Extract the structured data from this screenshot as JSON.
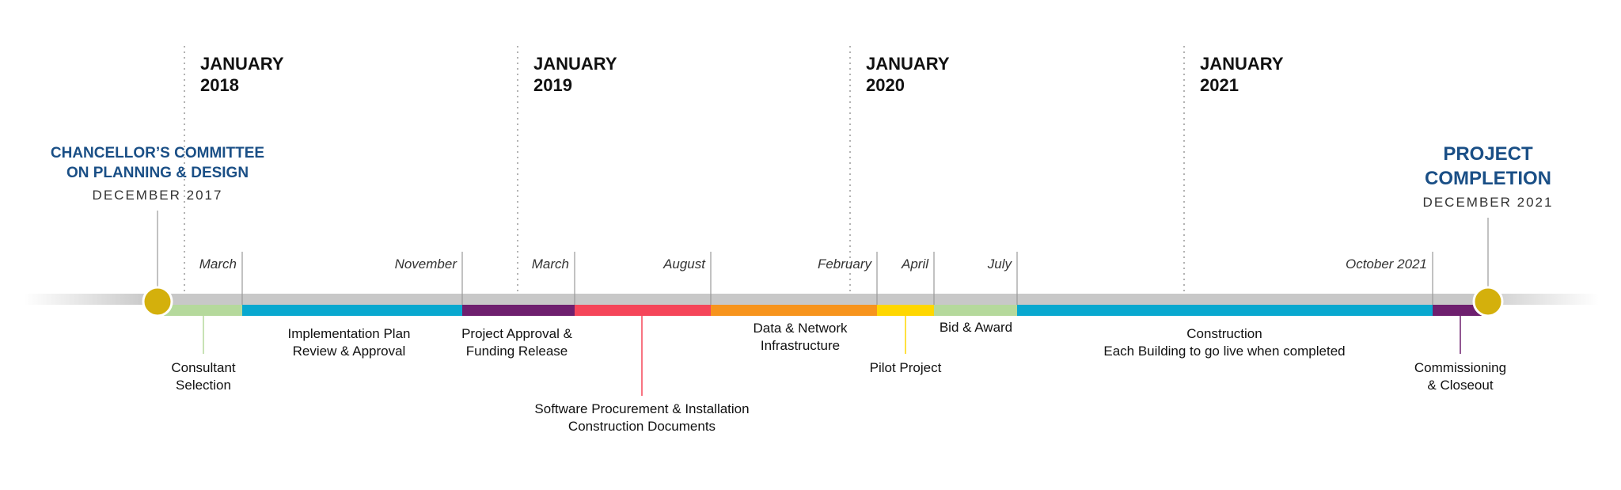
{
  "colors": {
    "track": "#c8c8c8",
    "milestone_dot": "#d4b00c",
    "milestone_text": "#1a4f86",
    "guide": "#999999"
  },
  "years": [
    {
      "month": "JANUARY",
      "year": "2018"
    },
    {
      "month": "JANUARY",
      "year": "2019"
    },
    {
      "month": "JANUARY",
      "year": "2020"
    },
    {
      "month": "JANUARY",
      "year": "2021"
    }
  ],
  "months": [
    "March",
    "November",
    "March",
    "August",
    "February",
    "April",
    "July",
    "October 2021"
  ],
  "phases": [
    {
      "lines": [
        "Consultant",
        "Selection"
      ],
      "color": "#b5d99c"
    },
    {
      "lines": [
        "Implementation Plan",
        "Review & Approval"
      ],
      "color": "#08a8cf"
    },
    {
      "lines": [
        "Project Approval &",
        "Funding Release"
      ],
      "color": "#6e1f6e"
    },
    {
      "lines": [
        "Software Procurement & Installation",
        "Construction Documents"
      ],
      "color": "#f54559"
    },
    {
      "lines": [
        "Data & Network",
        "Infrastructure"
      ],
      "color": "#f7941d"
    },
    {
      "lines": [
        "Pilot Project"
      ],
      "color": "#ffd700"
    },
    {
      "lines": [
        "Bid & Award"
      ],
      "color": "#b5d99c"
    },
    {
      "lines": [
        "Construction",
        "Each Building to go live when completed"
      ],
      "color": "#08a8cf"
    },
    {
      "lines": [
        "Commissioning",
        "& Closeout"
      ],
      "color": "#6e1f6e"
    }
  ],
  "milestones": [
    {
      "title_lines": [
        "CHANCELLOR’S COMMITTEE",
        "ON PLANNING & DESIGN"
      ],
      "date": "DECEMBER 2017"
    },
    {
      "title_lines": [
        "PROJECT",
        "COMPLETION"
      ],
      "date": "DECEMBER 2021"
    }
  ]
}
